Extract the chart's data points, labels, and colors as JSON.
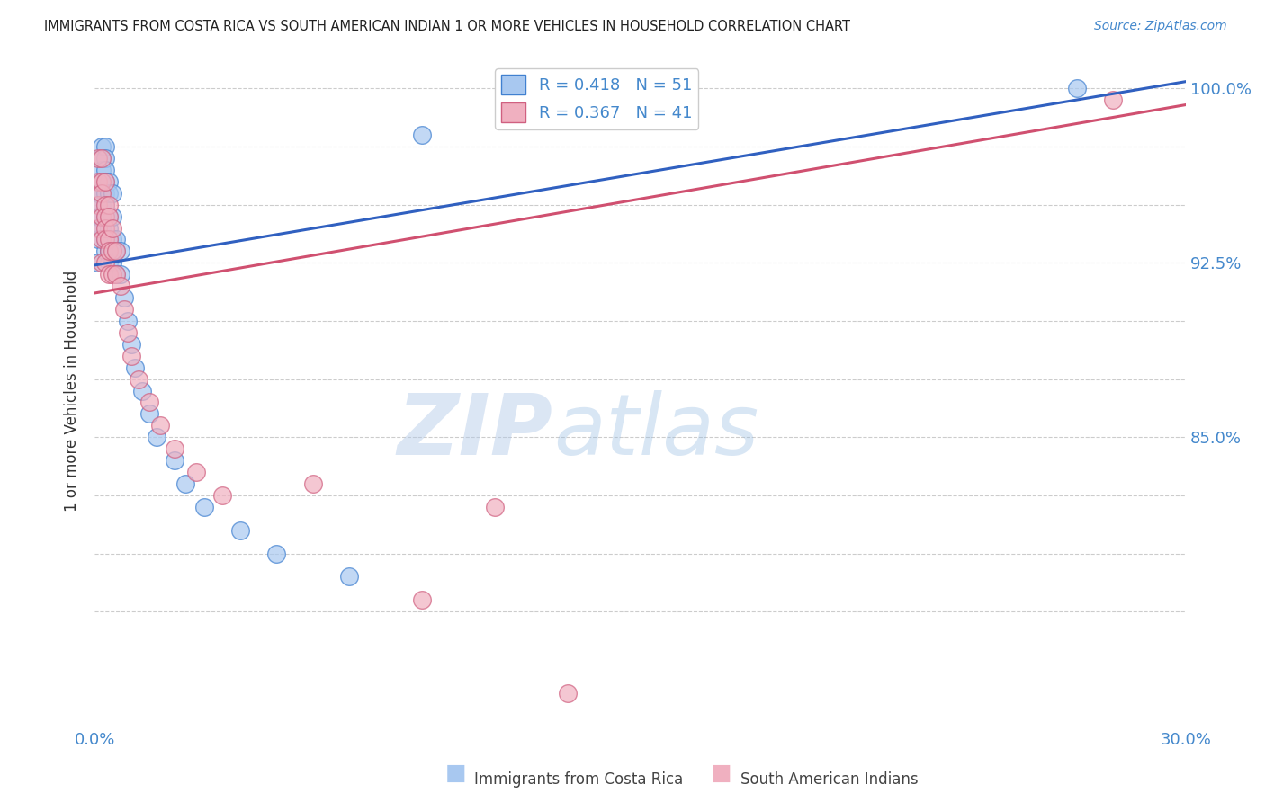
{
  "title": "IMMIGRANTS FROM COSTA RICA VS SOUTH AMERICAN INDIAN 1 OR MORE VEHICLES IN HOUSEHOLD CORRELATION CHART",
  "source": "Source: ZipAtlas.com",
  "ylabel": "1 or more Vehicles in Household",
  "ylim": [
    0.725,
    1.015
  ],
  "xlim": [
    0.0,
    0.3
  ],
  "ytick_vals": [
    0.775,
    0.8,
    0.825,
    0.85,
    0.875,
    0.9,
    0.925,
    0.95,
    0.975,
    1.0
  ],
  "ytick_labels": [
    "",
    "",
    "",
    "85.0%",
    "",
    "",
    "92.5%",
    "",
    "",
    "100.0%"
  ],
  "watermark_zip": "ZIP",
  "watermark_atlas": "atlas",
  "blue_color": "#a8c8f0",
  "pink_color": "#f0b0c0",
  "blue_edge_color": "#4080d0",
  "pink_edge_color": "#d06080",
  "blue_line_color": "#3060c0",
  "pink_line_color": "#d05070",
  "axis_color": "#4488cc",
  "legend_label_blue": "R = 0.418   N = 51",
  "legend_label_pink": "R = 0.367   N = 41",
  "blue_line_y0": 0.924,
  "blue_line_y1": 1.003,
  "pink_line_y0": 0.912,
  "pink_line_y1": 0.993,
  "blue_x": [
    0.001,
    0.001,
    0.001,
    0.001,
    0.002,
    0.002,
    0.002,
    0.002,
    0.002,
    0.002,
    0.002,
    0.003,
    0.003,
    0.003,
    0.003,
    0.003,
    0.003,
    0.003,
    0.003,
    0.003,
    0.004,
    0.004,
    0.004,
    0.004,
    0.004,
    0.004,
    0.004,
    0.005,
    0.005,
    0.005,
    0.005,
    0.006,
    0.006,
    0.006,
    0.007,
    0.007,
    0.008,
    0.009,
    0.01,
    0.011,
    0.013,
    0.015,
    0.017,
    0.022,
    0.025,
    0.03,
    0.04,
    0.05,
    0.07,
    0.09,
    0.27
  ],
  "blue_y": [
    0.955,
    0.945,
    0.935,
    0.925,
    0.975,
    0.97,
    0.965,
    0.96,
    0.955,
    0.95,
    0.94,
    0.975,
    0.97,
    0.965,
    0.96,
    0.955,
    0.95,
    0.945,
    0.935,
    0.93,
    0.96,
    0.955,
    0.945,
    0.94,
    0.935,
    0.93,
    0.925,
    0.955,
    0.945,
    0.935,
    0.925,
    0.935,
    0.93,
    0.92,
    0.93,
    0.92,
    0.91,
    0.9,
    0.89,
    0.88,
    0.87,
    0.86,
    0.85,
    0.84,
    0.83,
    0.82,
    0.81,
    0.8,
    0.79,
    0.98,
    1.0
  ],
  "pink_x": [
    0.001,
    0.001,
    0.001,
    0.001,
    0.002,
    0.002,
    0.002,
    0.002,
    0.002,
    0.002,
    0.003,
    0.003,
    0.003,
    0.003,
    0.003,
    0.003,
    0.004,
    0.004,
    0.004,
    0.004,
    0.004,
    0.005,
    0.005,
    0.005,
    0.006,
    0.006,
    0.007,
    0.008,
    0.009,
    0.01,
    0.012,
    0.015,
    0.018,
    0.022,
    0.028,
    0.035,
    0.06,
    0.09,
    0.11,
    0.13,
    0.28
  ],
  "pink_y": [
    0.97,
    0.96,
    0.95,
    0.94,
    0.97,
    0.96,
    0.955,
    0.945,
    0.935,
    0.925,
    0.96,
    0.95,
    0.945,
    0.94,
    0.935,
    0.925,
    0.95,
    0.945,
    0.935,
    0.93,
    0.92,
    0.94,
    0.93,
    0.92,
    0.93,
    0.92,
    0.915,
    0.905,
    0.895,
    0.885,
    0.875,
    0.865,
    0.855,
    0.845,
    0.835,
    0.825,
    0.83,
    0.78,
    0.82,
    0.74,
    0.995
  ]
}
